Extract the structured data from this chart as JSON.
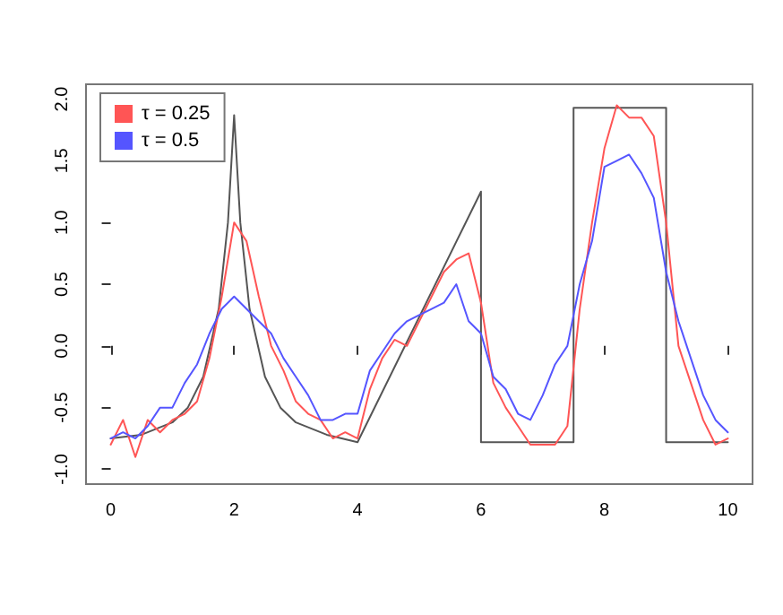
{
  "chart_data": {
    "type": "line",
    "marker": "none",
    "grid": false,
    "legend": "top left",
    "xlim": [
      -0.4,
      10.4
    ],
    "xticks": [
      0,
      2,
      4,
      6,
      8,
      10
    ],
    "ylim": [
      -1.12,
      2.12
    ],
    "yticks": [
      {
        "value": -1,
        "label": "-1.0"
      },
      {
        "value": -0.5,
        "label": "-0.5"
      },
      {
        "value": 0,
        "label": "0.0"
      },
      {
        "value": 0.5,
        "label": "0.5"
      },
      {
        "value": 1,
        "label": "1.0"
      },
      {
        "value": 1.5,
        "label": "1.5"
      },
      {
        "value": 2,
        "label": "2.0"
      }
    ],
    "series": [
      {
        "color": "#555555",
        "x": [
          0,
          0.5,
          1,
          1.25,
          1.5,
          1.75,
          1.9,
          2,
          2.1,
          2.25,
          2.5,
          2.75,
          3,
          3.5,
          4,
          6,
          6,
          7.5,
          7.5,
          9,
          9,
          10
        ],
        "values": [
          -0.75,
          -0.72,
          -0.62,
          -0.5,
          -0.25,
          0.3,
          1.0,
          1.87,
          1.0,
          0.3,
          -0.25,
          -0.5,
          -0.62,
          -0.72,
          -0.78,
          1.25,
          -0.78,
          -0.78,
          1.93,
          1.93,
          -0.78,
          -0.78
        ]
      },
      {
        "name": "τ = 0.25",
        "color": "#ff5555",
        "x": [
          0,
          0.2,
          0.4,
          0.6,
          0.8,
          1,
          1.2,
          1.4,
          1.6,
          1.8,
          2,
          2.2,
          2.4,
          2.6,
          2.8,
          3,
          3.2,
          3.4,
          3.6,
          3.8,
          4,
          4.2,
          4.4,
          4.6,
          4.8,
          5,
          5.2,
          5.4,
          5.6,
          5.8,
          6,
          6.2,
          6.4,
          6.6,
          6.8,
          7,
          7.2,
          7.4,
          7.6,
          7.8,
          8,
          8.2,
          8.4,
          8.6,
          8.8,
          9,
          9.2,
          9.4,
          9.6,
          9.8,
          10
        ],
        "values": [
          -0.8,
          -0.6,
          -0.9,
          -0.6,
          -0.7,
          -0.6,
          -0.55,
          -0.45,
          -0.1,
          0.4,
          1.0,
          0.85,
          0.4,
          0.0,
          -0.2,
          -0.45,
          -0.55,
          -0.6,
          -0.75,
          -0.7,
          -0.75,
          -0.35,
          -0.1,
          0.05,
          0.0,
          0.2,
          0.4,
          0.6,
          0.7,
          0.75,
          0.35,
          -0.3,
          -0.5,
          -0.65,
          -0.8,
          -0.8,
          -0.8,
          -0.65,
          0.3,
          1.0,
          1.6,
          1.95,
          1.85,
          1.85,
          1.7,
          1.0,
          0.0,
          -0.3,
          -0.6,
          -0.8,
          -0.75
        ]
      },
      {
        "name": "τ = 0.5",
        "color": "#5555ff",
        "x": [
          0,
          0.2,
          0.4,
          0.6,
          0.8,
          1,
          1.2,
          1.4,
          1.6,
          1.8,
          2,
          2.2,
          2.4,
          2.6,
          2.8,
          3,
          3.2,
          3.4,
          3.6,
          3.8,
          4,
          4.2,
          4.4,
          4.6,
          4.8,
          5,
          5.2,
          5.4,
          5.6,
          5.8,
          6,
          6.2,
          6.4,
          6.6,
          6.8,
          7,
          7.2,
          7.4,
          7.6,
          7.8,
          8,
          8.2,
          8.4,
          8.6,
          8.8,
          9,
          9.2,
          9.4,
          9.6,
          9.8,
          10
        ],
        "values": [
          -0.75,
          -0.7,
          -0.75,
          -0.65,
          -0.5,
          -0.5,
          -0.3,
          -0.15,
          0.1,
          0.3,
          0.4,
          0.3,
          0.2,
          0.1,
          -0.1,
          -0.25,
          -0.4,
          -0.6,
          -0.6,
          -0.55,
          -0.55,
          -0.2,
          -0.05,
          0.1,
          0.2,
          0.25,
          0.3,
          0.35,
          0.5,
          0.2,
          0.1,
          -0.25,
          -0.35,
          -0.55,
          -0.6,
          -0.4,
          -0.15,
          0.0,
          0.5,
          0.85,
          1.45,
          1.5,
          1.55,
          1.4,
          1.2,
          0.6,
          0.2,
          -0.1,
          -0.4,
          -0.6,
          -0.7
        ]
      }
    ]
  }
}
